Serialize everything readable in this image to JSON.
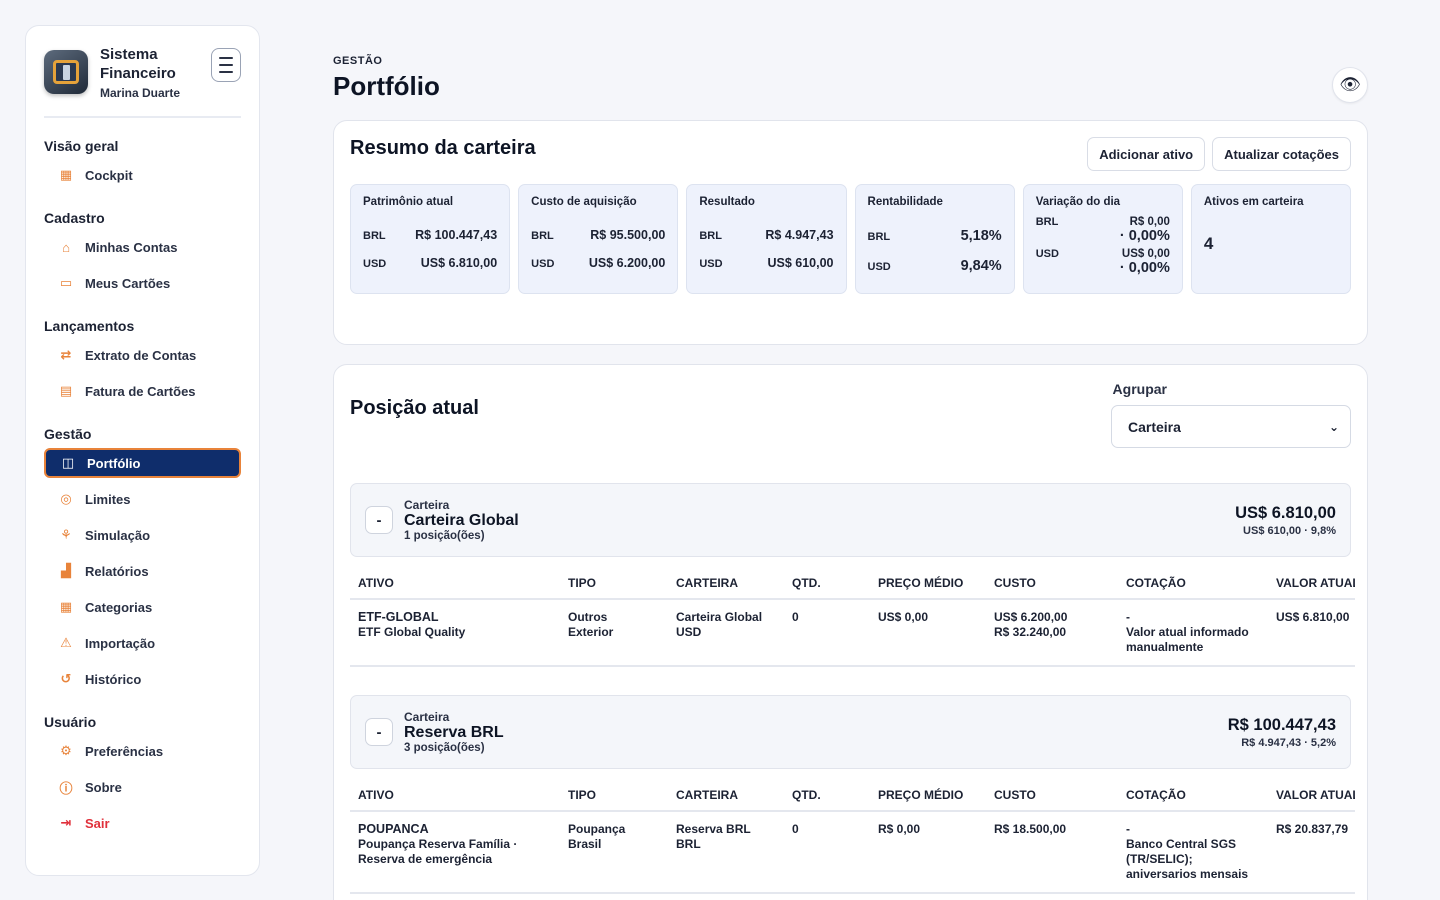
{
  "brand": {
    "title": "Sistema Financeiro",
    "user": "Marina Duarte"
  },
  "sidebar": {
    "sections": [
      {
        "title": "Visão geral",
        "items": [
          {
            "label": "Cockpit",
            "icon": "grid-icon"
          }
        ]
      },
      {
        "title": "Cadastro",
        "items": [
          {
            "label": "Minhas Contas",
            "icon": "bank-icon"
          },
          {
            "label": "Meus Cartões",
            "icon": "card-icon"
          }
        ]
      },
      {
        "title": "Lançamentos",
        "items": [
          {
            "label": "Extrato de Contas",
            "icon": "transfer-icon"
          },
          {
            "label": "Fatura de Cartões",
            "icon": "invoice-icon"
          }
        ]
      },
      {
        "title": "Gestão",
        "items": [
          {
            "label": "Portfólio",
            "icon": "briefcase-icon"
          },
          {
            "label": "Limites",
            "icon": "target-icon"
          },
          {
            "label": "Simulação",
            "icon": "flow-icon"
          },
          {
            "label": "Relatórios",
            "icon": "bar-chart-icon"
          },
          {
            "label": "Categorias",
            "icon": "grid-icon"
          },
          {
            "label": "Importação",
            "icon": "upload-icon"
          },
          {
            "label": "Histórico",
            "icon": "history-icon"
          }
        ]
      },
      {
        "title": "Usuário",
        "items": [
          {
            "label": "Preferências",
            "icon": "gear-icon"
          },
          {
            "label": "Sobre",
            "icon": "info-icon"
          },
          {
            "label": "Sair",
            "icon": "logout-icon"
          }
        ]
      }
    ]
  },
  "header": {
    "kicker": "GESTÃO",
    "title": "Portfólio"
  },
  "summary": {
    "title": "Resumo da carteira",
    "buttons": {
      "add": "Adicionar ativo",
      "refresh": "Atualizar cotações"
    },
    "kpis": {
      "patrimonio": {
        "label": "Patrimônio atual",
        "brl_cur": "BRL",
        "brl": "R$ 100.447,43",
        "usd_cur": "USD",
        "usd": "US$ 6.810,00"
      },
      "custo": {
        "label": "Custo de aquisição",
        "brl_cur": "BRL",
        "brl": "R$ 95.500,00",
        "usd_cur": "USD",
        "usd": "US$ 6.200,00"
      },
      "resultado": {
        "label": "Resultado",
        "brl_cur": "BRL",
        "brl": "R$ 4.947,43",
        "usd_cur": "USD",
        "usd": "US$ 610,00"
      },
      "rentabilidade": {
        "label": "Rentabilidade",
        "brl_cur": "BRL",
        "brl": "5,18%",
        "usd_cur": "USD",
        "usd": "9,84%"
      },
      "variacao": {
        "label": "Variação do dia",
        "brl_cur": "BRL",
        "brl_value": "R$ 0,00",
        "brl_pct": "· 0,00%",
        "usd_cur": "USD",
        "usd_value": "US$ 0,00",
        "usd_pct": "· 0,00%"
      },
      "ativos": {
        "label": "Ativos em carteira",
        "value": "4"
      }
    }
  },
  "position": {
    "title": "Posição atual",
    "group_label": "Agrupar",
    "group_value": "Carteira",
    "columns": [
      "ATIVO",
      "TIPO",
      "CARTEIRA",
      "QTD.",
      "PREÇO MÉDIO",
      "CUSTO",
      "COTAÇÃO",
      "VALOR ATUAL"
    ],
    "groups": [
      {
        "kicker": "Carteira",
        "name": "Carteira Global",
        "count": "1 posição(ões)",
        "total": "US$ 6.810,00",
        "result": "US$ 610,00 · 9,8%",
        "rows": [
          {
            "ativo": "ETF-GLOBAL",
            "ativo_desc": "ETF Global Quality",
            "tipo": "Outros",
            "tipo_desc": "Exterior",
            "carteira": "Carteira Global",
            "carteira_desc": "USD",
            "qtd": "0",
            "preco": "US$ 0,00",
            "custo": "US$ 6.200,00",
            "custo_desc": "R$ 32.240,00",
            "cotacao": "-",
            "cotacao_desc": "Valor atual informado manualmente",
            "valor": "US$ 6.810,00"
          }
        ]
      },
      {
        "kicker": "Carteira",
        "name": "Reserva BRL",
        "count": "3 posição(ões)",
        "total": "R$ 100.447,43",
        "result": "R$ 4.947,43 · 5,2%",
        "rows": [
          {
            "ativo": "POUPANCA",
            "ativo_desc": "Poupança Reserva Família · Reserva de emergência",
            "tipo": "Poupança",
            "tipo_desc": "Brasil",
            "carteira": "Reserva BRL",
            "carteira_desc": "BRL",
            "qtd": "0",
            "preco": "R$ 0,00",
            "custo": "R$ 18.500,00",
            "cotacao": "-",
            "cotacao_desc": "Banco Central SGS (TR/SELIC); aniversarios mensais",
            "valor": "R$ 20.837,79"
          }
        ]
      }
    ]
  },
  "colors": {
    "accent": "#e8833a",
    "active_bg": "#0f2d6b",
    "danger": "#e0303b",
    "kpi_bg": "#eef2fc"
  }
}
